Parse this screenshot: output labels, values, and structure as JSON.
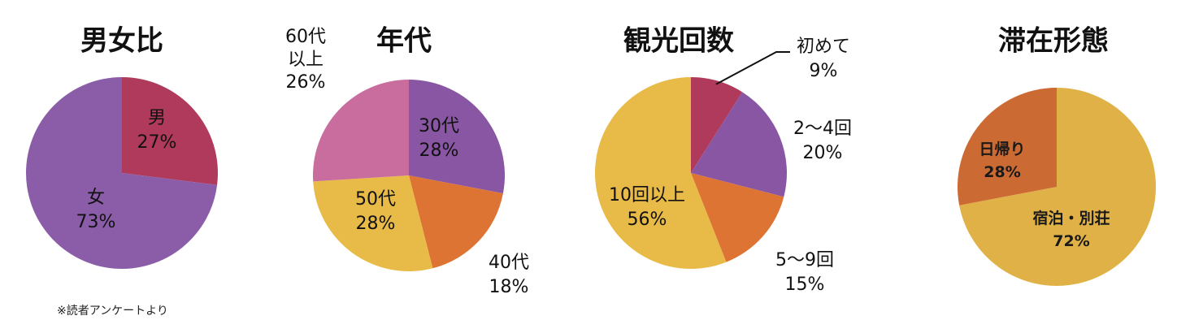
{
  "chart_data": [
    {
      "type": "pie",
      "title": "男女比",
      "slices": [
        {
          "label": "男",
          "value": 27,
          "value_text": "27%",
          "color": "#b03a5b"
        },
        {
          "label": "女",
          "value": 73,
          "value_text": "73%",
          "color": "#8b5ca8"
        }
      ]
    },
    {
      "type": "pie",
      "title": "年代",
      "slices": [
        {
          "label": "30代",
          "value": 28,
          "value_text": "28%",
          "color": "#8856a2"
        },
        {
          "label": "40代",
          "value": 18,
          "value_text": "18%",
          "color": "#de7434"
        },
        {
          "label": "50代",
          "value": 28,
          "value_text": "28%",
          "color": "#e8bb48"
        },
        {
          "label": "60代\n以上",
          "value": 26,
          "value_text": "26%",
          "color": "#c86d9e"
        }
      ]
    },
    {
      "type": "pie",
      "title": "観光回数",
      "slices": [
        {
          "label": "初めて",
          "value": 9,
          "value_text": "9%",
          "color": "#b03a5b"
        },
        {
          "label": "2〜4回",
          "value": 20,
          "value_text": "20%",
          "color": "#8856a2"
        },
        {
          "label": "5〜9回",
          "value": 15,
          "value_text": "15%",
          "color": "#de7434"
        },
        {
          "label": "10回以上",
          "value": 56,
          "value_text": "56%",
          "color": "#e8bb48"
        }
      ]
    },
    {
      "type": "pie",
      "title": "滞在形態",
      "slices": [
        {
          "label": "宿泊・別荘",
          "value": 72,
          "value_text": "72%",
          "color": "#e0b146"
        },
        {
          "label": "日帰り",
          "value": 28,
          "value_text": "28%",
          "color": "#cc6a33"
        }
      ]
    }
  ],
  "footnote": "※読者アンケートより"
}
